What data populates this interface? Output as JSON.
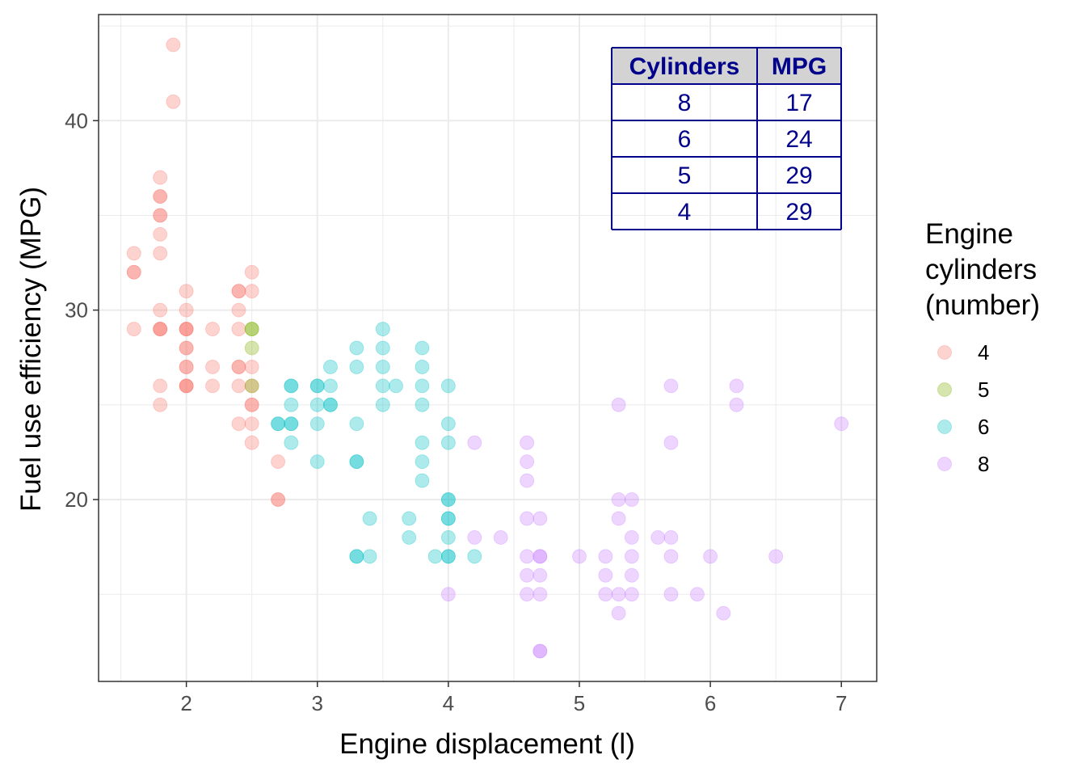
{
  "chart_data": {
    "type": "scatter",
    "xlabel": "Engine displacement (l)",
    "ylabel": "Fuel use efficiency (MPG)",
    "xlim": [
      1.33,
      7.27
    ],
    "ylim": [
      10.4,
      45.6
    ],
    "x_ticks": [
      2,
      3,
      4,
      5,
      6,
      7
    ],
    "y_ticks": [
      20,
      30,
      40
    ],
    "grid": true,
    "legend": {
      "title": [
        "Engine",
        "cylinders",
        "(number)"
      ],
      "placement": "right",
      "entries": [
        {
          "label": "4",
          "color": "#F8766D"
        },
        {
          "label": "5",
          "color": "#7CAE00"
        },
        {
          "label": "6",
          "color": "#00BFC4"
        },
        {
          "label": "8",
          "color": "#C77CFF"
        }
      ]
    },
    "series": [
      {
        "name": "4",
        "color": "#F8766D",
        "points": [
          [
            1.6,
            33
          ],
          [
            1.6,
            32
          ],
          [
            1.6,
            32
          ],
          [
            1.6,
            29
          ],
          [
            1.8,
            37
          ],
          [
            1.8,
            36
          ],
          [
            1.8,
            36
          ],
          [
            1.8,
            35
          ],
          [
            1.8,
            35
          ],
          [
            1.8,
            34
          ],
          [
            1.8,
            33
          ],
          [
            1.8,
            30
          ],
          [
            1.8,
            29
          ],
          [
            1.8,
            29
          ],
          [
            1.8,
            29
          ],
          [
            1.8,
            26
          ],
          [
            1.8,
            25
          ],
          [
            1.9,
            44
          ],
          [
            1.9,
            41
          ],
          [
            2.0,
            31
          ],
          [
            2.0,
            30
          ],
          [
            2.0,
            29
          ],
          [
            2.0,
            29
          ],
          [
            2.0,
            29
          ],
          [
            2.0,
            28
          ],
          [
            2.0,
            28
          ],
          [
            2.0,
            27
          ],
          [
            2.0,
            27
          ],
          [
            2.0,
            26
          ],
          [
            2.0,
            26
          ],
          [
            2.0,
            26
          ],
          [
            2.2,
            29
          ],
          [
            2.2,
            27
          ],
          [
            2.2,
            26
          ],
          [
            2.4,
            31
          ],
          [
            2.4,
            31
          ],
          [
            2.4,
            30
          ],
          [
            2.4,
            29
          ],
          [
            2.4,
            27
          ],
          [
            2.4,
            27
          ],
          [
            2.4,
            26
          ],
          [
            2.4,
            24
          ],
          [
            2.5,
            32
          ],
          [
            2.5,
            31
          ],
          [
            2.5,
            27
          ],
          [
            2.5,
            26
          ],
          [
            2.5,
            25
          ],
          [
            2.5,
            25
          ],
          [
            2.5,
            24
          ],
          [
            2.5,
            23
          ],
          [
            2.7,
            22
          ],
          [
            2.7,
            20
          ],
          [
            2.7,
            20
          ]
        ]
      },
      {
        "name": "5",
        "color": "#7CAE00",
        "points": [
          [
            2.5,
            29
          ],
          [
            2.5,
            29
          ],
          [
            2.5,
            28
          ],
          [
            2.5,
            26
          ]
        ]
      },
      {
        "name": "6",
        "color": "#00BFC4",
        "points": [
          [
            2.7,
            24
          ],
          [
            2.7,
            24
          ],
          [
            2.8,
            26
          ],
          [
            2.8,
            26
          ],
          [
            2.8,
            25
          ],
          [
            2.8,
            24
          ],
          [
            2.8,
            24
          ],
          [
            2.8,
            23
          ],
          [
            3.0,
            26
          ],
          [
            3.0,
            26
          ],
          [
            3.0,
            25
          ],
          [
            3.0,
            24
          ],
          [
            3.0,
            22
          ],
          [
            3.1,
            27
          ],
          [
            3.1,
            26
          ],
          [
            3.1,
            25
          ],
          [
            3.1,
            25
          ],
          [
            3.3,
            28
          ],
          [
            3.3,
            27
          ],
          [
            3.3,
            24
          ],
          [
            3.3,
            22
          ],
          [
            3.3,
            22
          ],
          [
            3.3,
            17
          ],
          [
            3.3,
            17
          ],
          [
            3.4,
            19
          ],
          [
            3.4,
            17
          ],
          [
            3.5,
            29
          ],
          [
            3.5,
            28
          ],
          [
            3.5,
            27
          ],
          [
            3.5,
            26
          ],
          [
            3.5,
            25
          ],
          [
            3.6,
            26
          ],
          [
            3.7,
            19
          ],
          [
            3.7,
            18
          ],
          [
            3.8,
            28
          ],
          [
            3.8,
            27
          ],
          [
            3.8,
            26
          ],
          [
            3.8,
            25
          ],
          [
            3.8,
            23
          ],
          [
            3.8,
            22
          ],
          [
            3.8,
            21
          ],
          [
            3.9,
            17
          ],
          [
            4.0,
            26
          ],
          [
            4.0,
            24
          ],
          [
            4.0,
            23
          ],
          [
            4.0,
            20
          ],
          [
            4.0,
            20
          ],
          [
            4.0,
            19
          ],
          [
            4.0,
            19
          ],
          [
            4.0,
            18
          ],
          [
            4.0,
            17
          ],
          [
            4.0,
            17
          ],
          [
            4.2,
            17
          ]
        ]
      },
      {
        "name": "8",
        "color": "#C77CFF",
        "points": [
          [
            4.0,
            15
          ],
          [
            4.2,
            23
          ],
          [
            4.2,
            18
          ],
          [
            4.4,
            18
          ],
          [
            4.6,
            23
          ],
          [
            4.6,
            22
          ],
          [
            4.6,
            21
          ],
          [
            4.6,
            19
          ],
          [
            4.6,
            17
          ],
          [
            4.6,
            16
          ],
          [
            4.6,
            15
          ],
          [
            4.7,
            19
          ],
          [
            4.7,
            17
          ],
          [
            4.7,
            17
          ],
          [
            4.7,
            16
          ],
          [
            4.7,
            15
          ],
          [
            4.7,
            12
          ],
          [
            4.7,
            12
          ],
          [
            5.0,
            17
          ],
          [
            5.2,
            17
          ],
          [
            5.2,
            16
          ],
          [
            5.2,
            15
          ],
          [
            5.3,
            25
          ],
          [
            5.3,
            20
          ],
          [
            5.3,
            19
          ],
          [
            5.3,
            15
          ],
          [
            5.3,
            14
          ],
          [
            5.4,
            20
          ],
          [
            5.4,
            18
          ],
          [
            5.4,
            17
          ],
          [
            5.4,
            16
          ],
          [
            5.4,
            15
          ],
          [
            5.6,
            18
          ],
          [
            5.7,
            26
          ],
          [
            5.7,
            23
          ],
          [
            5.7,
            18
          ],
          [
            5.7,
            17
          ],
          [
            5.7,
            15
          ],
          [
            5.9,
            15
          ],
          [
            6.0,
            17
          ],
          [
            6.1,
            14
          ],
          [
            6.2,
            26
          ],
          [
            6.2,
            25
          ],
          [
            6.5,
            17
          ],
          [
            7.0,
            24
          ]
        ]
      }
    ]
  },
  "table": {
    "headers": [
      "Cylinders",
      "MPG"
    ],
    "rows": [
      [
        "8",
        "17"
      ],
      [
        "6",
        "24"
      ],
      [
        "5",
        "29"
      ],
      [
        "4",
        "29"
      ]
    ]
  }
}
